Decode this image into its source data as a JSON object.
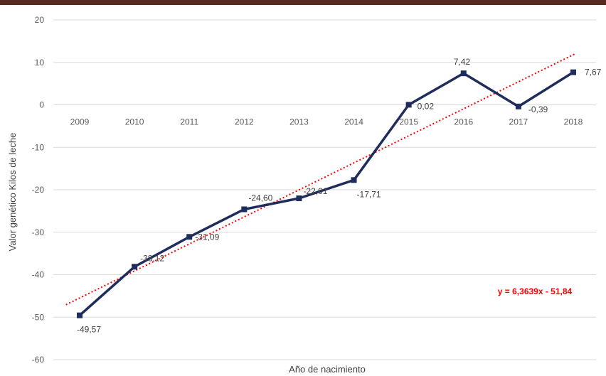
{
  "chart_data": {
    "type": "line",
    "title": "",
    "xlabel": "Año de nacimiento",
    "ylabel": "Valor genético Kilos de leche",
    "ylim": [
      -60,
      20
    ],
    "yticks": [
      20,
      10,
      0,
      -10,
      -20,
      -30,
      -40,
      -50,
      -60
    ],
    "grid": "horizontal",
    "categories": [
      "2009",
      "2010",
      "2011",
      "2012",
      "2013",
      "2014",
      "2015",
      "2016",
      "2017",
      "2018"
    ],
    "series": [
      {
        "values": [
          -49.57,
          -38.12,
          -31.09,
          -24.6,
          -22.01,
          -17.71,
          0.02,
          7.42,
          -0.39,
          7.67
        ],
        "labels": [
          "-49,57",
          "-38,12",
          "-31,09",
          "-24,60",
          "-22,01",
          "-17,71",
          "0,02",
          "7,42",
          "-0,39",
          "7,67"
        ],
        "color": "#1f2d5c",
        "marker": "square"
      }
    ],
    "trendline": {
      "type": "linear",
      "slope": 6.3639,
      "intercept": -51.84,
      "color": "#ff0000",
      "style": "dotted",
      "equation": "y = 6,3639x - 51,84"
    }
  }
}
